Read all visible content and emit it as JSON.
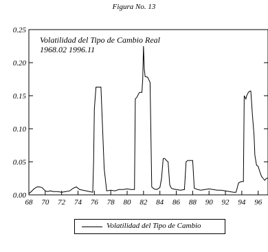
{
  "figure_title": "Figura No. 13",
  "chart_data": {
    "type": "line",
    "annotation_title": "Volatilidad del Tipo de Cambio Real",
    "annotation_period": "1968.02 1996.11",
    "xlim": [
      68,
      97.2
    ],
    "ylim": [
      0,
      0.25
    ],
    "x_ticks": [
      68,
      70,
      72,
      74,
      76,
      78,
      80,
      82,
      84,
      86,
      88,
      90,
      92,
      94,
      96
    ],
    "x_tick_labels": [
      "68",
      "70",
      "72",
      "74",
      "76",
      "78",
      "80",
      "82",
      "84",
      "86",
      "88",
      "90",
      "92",
      "94",
      "96"
    ],
    "y_ticks": [
      0,
      0.05,
      0.1,
      0.15,
      0.2,
      0.25
    ],
    "y_tick_labels": [
      "0.00",
      "0.05",
      "0.10",
      "0.15",
      "0.20",
      "0.25"
    ],
    "legend_position": "bottom-center",
    "series": [
      {
        "name": "Volatilidad del Tipo de Cambio",
        "x": [
          68.0,
          68.3,
          68.6,
          69.0,
          69.3,
          69.6,
          70.0,
          70.3,
          70.6,
          71.0,
          71.5,
          72.0,
          72.5,
          73.0,
          73.4,
          73.8,
          74.2,
          74.6,
          75.0,
          75.4,
          75.8,
          75.9,
          76.0,
          76.2,
          76.5,
          76.8,
          77.0,
          77.2,
          77.5,
          78.0,
          78.5,
          79.0,
          79.5,
          80.0,
          80.5,
          80.9,
          81.0,
          81.2,
          81.5,
          81.8,
          81.9,
          82.0,
          82.1,
          82.2,
          82.5,
          82.8,
          83.0,
          83.3,
          83.6,
          84.0,
          84.2,
          84.4,
          84.6,
          84.8,
          85.0,
          85.2,
          85.4,
          85.6,
          86.0,
          86.5,
          87.0,
          87.2,
          87.4,
          87.8,
          88.0,
          88.2,
          88.6,
          89.0,
          89.5,
          90.0,
          90.5,
          91.0,
          91.5,
          92.0,
          92.5,
          93.0,
          93.3,
          93.6,
          93.9,
          94.2,
          94.3,
          94.5,
          94.6,
          94.8,
          95.0,
          95.1,
          95.3,
          95.5,
          95.6,
          95.8,
          96.0,
          96.2,
          96.4,
          96.6,
          96.8,
          97.0,
          97.2
        ],
        "y": [
          0.002,
          0.005,
          0.009,
          0.012,
          0.012,
          0.011,
          0.006,
          0.005,
          0.006,
          0.005,
          0.005,
          0.004,
          0.005,
          0.006,
          0.01,
          0.012,
          0.008,
          0.007,
          0.006,
          0.005,
          0.004,
          0.05,
          0.13,
          0.163,
          0.163,
          0.163,
          0.1,
          0.04,
          0.006,
          0.007,
          0.006,
          0.008,
          0.008,
          0.009,
          0.008,
          0.008,
          0.145,
          0.148,
          0.155,
          0.155,
          0.175,
          0.225,
          0.19,
          0.179,
          0.178,
          0.17,
          0.012,
          0.009,
          0.008,
          0.011,
          0.025,
          0.055,
          0.055,
          0.052,
          0.05,
          0.015,
          0.01,
          0.009,
          0.008,
          0.007,
          0.008,
          0.05,
          0.052,
          0.052,
          0.052,
          0.01,
          0.008,
          0.007,
          0.008,
          0.009,
          0.008,
          0.007,
          0.007,
          0.006,
          0.005,
          0.004,
          0.004,
          0.018,
          0.02,
          0.02,
          0.15,
          0.145,
          0.15,
          0.155,
          0.157,
          0.157,
          0.12,
          0.09,
          0.06,
          0.045,
          0.043,
          0.035,
          0.028,
          0.025,
          0.022,
          0.025,
          0.025
        ]
      }
    ]
  }
}
